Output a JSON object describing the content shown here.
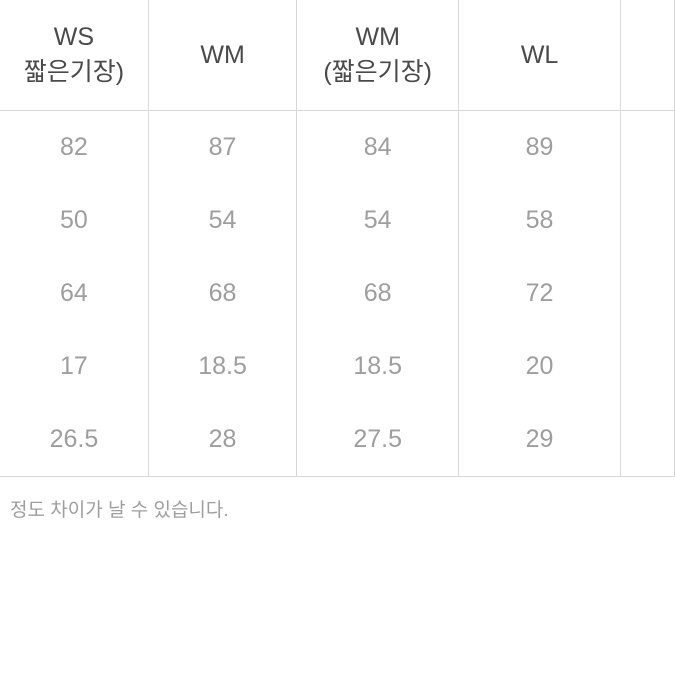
{
  "table": {
    "columns": [
      {
        "line1": "WS",
        "line2": "짧은기장)"
      },
      {
        "line1": "WM",
        "line2": ""
      },
      {
        "line1": "WM",
        "line2": "(짧은기장)"
      },
      {
        "line1": "WL",
        "line2": ""
      },
      {
        "line1": "",
        "line2": ""
      }
    ],
    "rows": [
      [
        "82",
        "87",
        "84",
        "89",
        ""
      ],
      [
        "50",
        "54",
        "54",
        "58",
        ""
      ],
      [
        "64",
        "68",
        "68",
        "72",
        ""
      ],
      [
        "17",
        "18.5",
        "18.5",
        "20",
        ""
      ],
      [
        "26.5",
        "28",
        "27.5",
        "29",
        ""
      ]
    ],
    "footer_text": " 정도 차이가 날 수 있습니다.",
    "colors": {
      "header_text": "#4a4a4a",
      "cell_text": "#9e9e9e",
      "border": "#d8d8d8",
      "background": "#ffffff"
    },
    "typography": {
      "header_fontsize": 25,
      "cell_fontsize": 25,
      "footer_fontsize": 19,
      "header_weight": 400,
      "cell_weight": 300
    }
  }
}
